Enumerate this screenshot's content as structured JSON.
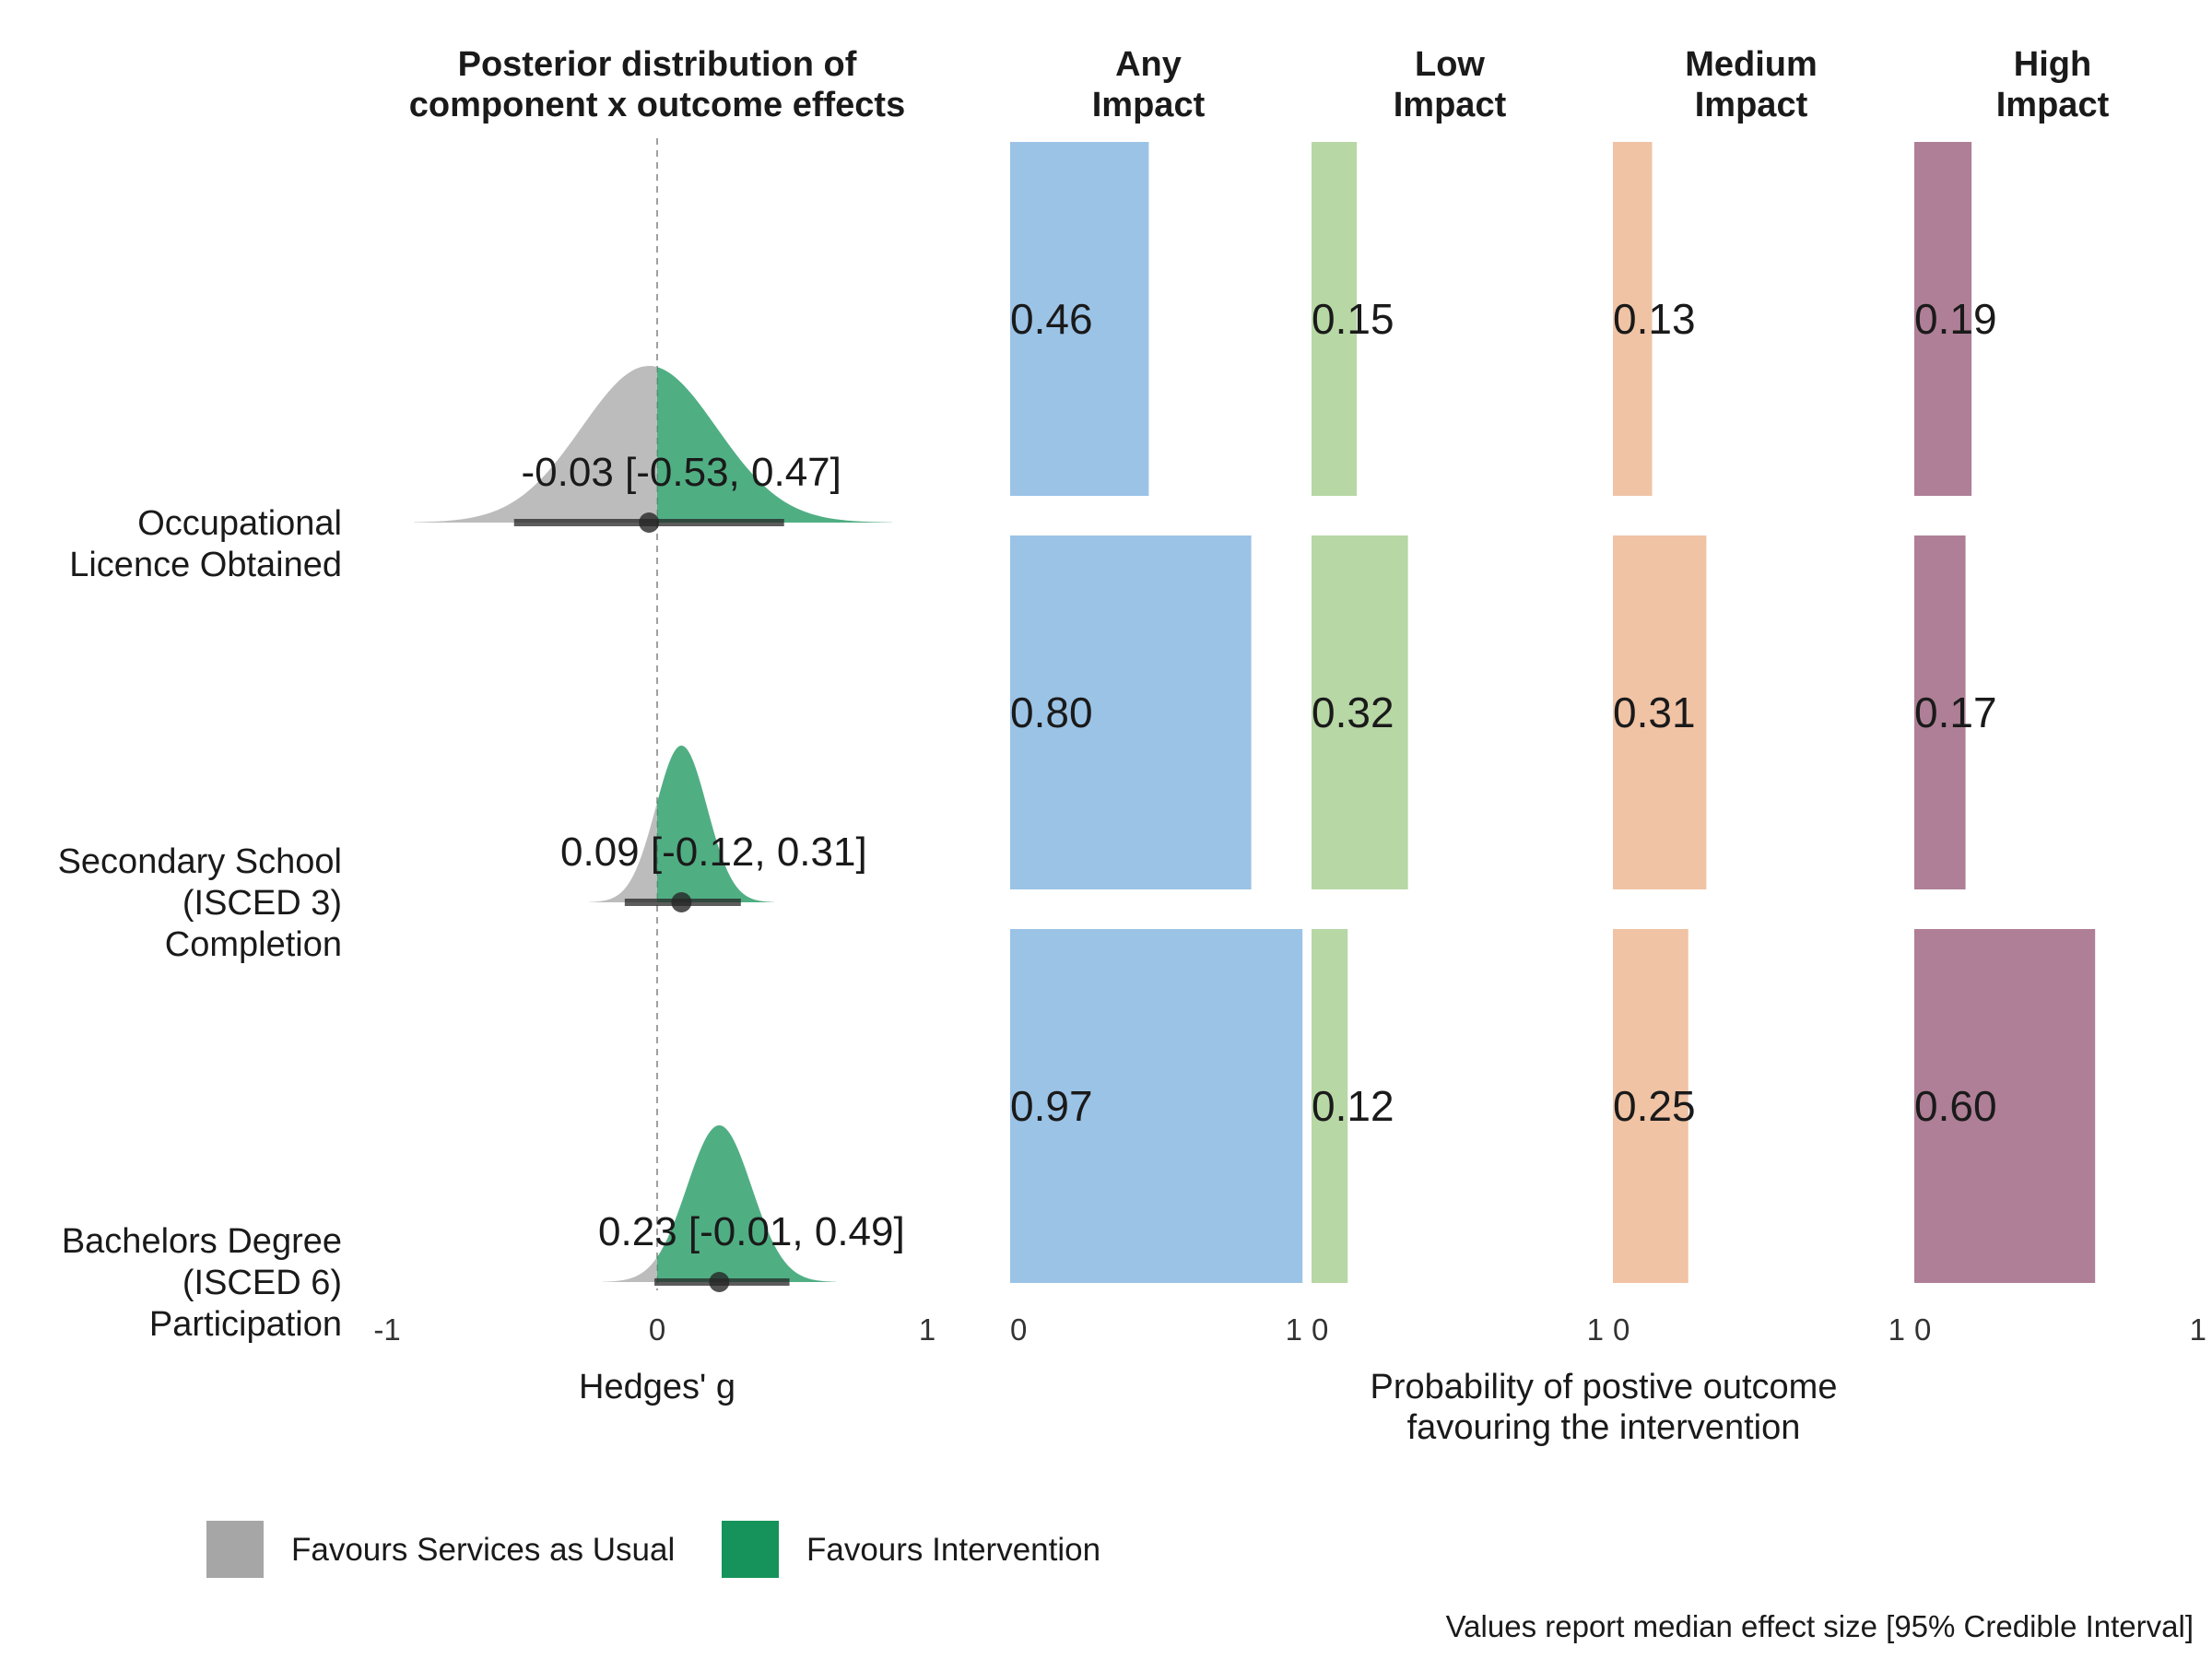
{
  "chart_data": {
    "type": "bar",
    "annotation_format": "{median} [{lower}, {upper}]",
    "left_panel": {
      "type": "posterior-density",
      "title": "Posterior distribution of\ncomponent x outcome effects",
      "xlabel": "Hedges' g",
      "xlim": [
        -1,
        1
      ],
      "x_ticks": [
        "-1",
        "0",
        "1"
      ],
      "reference_line": 0
    },
    "outcomes": [
      {
        "label": "Occupational\nLicence Obtained",
        "median": -0.03,
        "lower": -0.53,
        "upper": 0.47,
        "sd": 0.25
      },
      {
        "label": "Secondary School\n(ISCED 3)\nCompletion",
        "median": 0.09,
        "lower": -0.12,
        "upper": 0.31,
        "sd": 0.095
      },
      {
        "label": "Bachelors Degree\n(ISCED 6)\nParticipation",
        "median": 0.23,
        "lower": -0.01,
        "upper": 0.49,
        "sd": 0.12
      }
    ],
    "impact_panels": {
      "xlabel": "Probability of postive outcome\nfavouring the intervention",
      "xlim": [
        0,
        1
      ],
      "x_ticks": [
        "0",
        "1"
      ],
      "series": [
        {
          "name": "Any\nImpact",
          "color": "#9BC3E6",
          "values": [
            0.46,
            0.8,
            0.97
          ]
        },
        {
          "name": "Low\nImpact",
          "color": "#B7D7A5",
          "values": [
            0.15,
            0.32,
            0.12
          ]
        },
        {
          "name": "Medium\nImpact",
          "color": "#F0C3A5",
          "values": [
            0.13,
            0.31,
            0.25
          ]
        },
        {
          "name": "High\nImpact",
          "color": "#AE7F96",
          "values": [
            0.19,
            0.17,
            0.6
          ]
        }
      ]
    },
    "legend": {
      "position": "bottom-left",
      "items": [
        {
          "label": "Favours Services as Usual",
          "color": "#A6A6A6"
        },
        {
          "label": "Favours Intervention",
          "color": "#15935A"
        }
      ]
    },
    "caption": "Values report median effect size [95% Credible Interval]"
  }
}
